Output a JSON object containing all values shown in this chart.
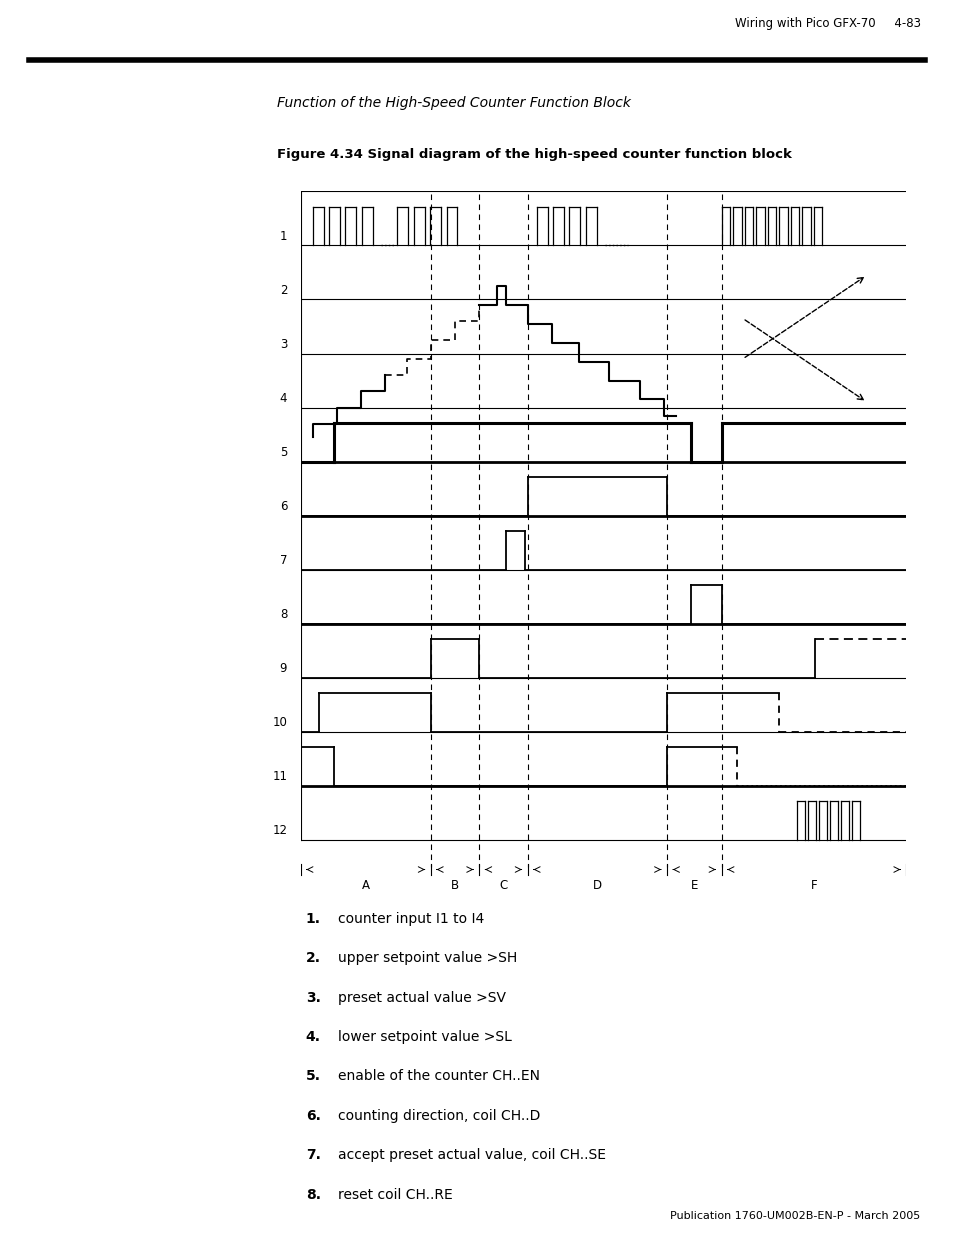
{
  "page_header": "Wiring with Pico GFX-70",
  "page_number": "4-83",
  "title_italic": "Function of the High-Speed Counter Function Block",
  "figure_caption": "Figure 4.34 Signal diagram of the high-speed counter function block",
  "list_items": [
    {
      "num": "1.",
      "text": "counter input I1 to I4"
    },
    {
      "num": "2.",
      "text": "upper setpoint value >SH"
    },
    {
      "num": "3.",
      "text": "preset actual value >SV"
    },
    {
      "num": "4.",
      "text": "lower setpoint value >SL"
    },
    {
      "num": "5.",
      "text": "enable of the counter CH..EN"
    },
    {
      "num": "6.",
      "text": "counting direction, coil CH..D"
    },
    {
      "num": "7.",
      "text": "accept preset actual value, coil CH..SE"
    },
    {
      "num": "8.",
      "text": "reset coil CH..RE"
    }
  ],
  "footer": "Publication 1760-UM002B-EN-P - March 2005"
}
